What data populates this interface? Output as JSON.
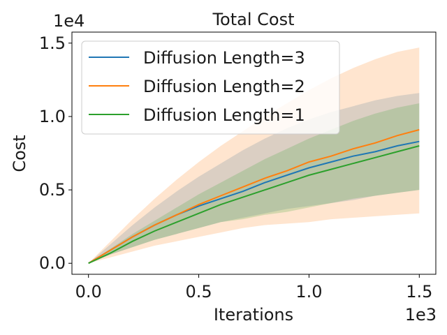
{
  "chart_data": {
    "type": "line",
    "title": "Total Cost",
    "xlabel": "Iterations",
    "ylabel": "Cost",
    "x_offset_label": "1e3",
    "y_offset_label": "1e4",
    "xlim": [
      -0.075,
      1.575
    ],
    "ylim": [
      -0.075,
      1.575
    ],
    "x_ticks": [
      {
        "value": 0.0,
        "label": "0.0"
      },
      {
        "value": 0.5,
        "label": "0.5"
      },
      {
        "value": 1.0,
        "label": "1.0"
      },
      {
        "value": 1.5,
        "label": "1.5"
      }
    ],
    "y_ticks": [
      {
        "value": 0.0,
        "label": "0.0"
      },
      {
        "value": 0.5,
        "label": "0.5"
      },
      {
        "value": 1.0,
        "label": "1.0"
      },
      {
        "value": 1.5,
        "label": "1.5"
      }
    ],
    "x": [
      0,
      0.1,
      0.2,
      0.3,
      0.4,
      0.5,
      0.6,
      0.7,
      0.8,
      0.9,
      1.0,
      1.1,
      1.2,
      1.3,
      1.4,
      1.5
    ],
    "grid": false,
    "legend_position": "top-left",
    "series": [
      {
        "name": "Diffusion Length=3",
        "color": "#1f77b4",
        "values": [
          0,
          0.09,
          0.18,
          0.26,
          0.33,
          0.39,
          0.44,
          0.49,
          0.55,
          0.6,
          0.65,
          0.69,
          0.73,
          0.76,
          0.8,
          0.83
        ],
        "band_upper": [
          0,
          0.13,
          0.26,
          0.38,
          0.49,
          0.59,
          0.68,
          0.77,
          0.85,
          0.92,
          0.98,
          1.03,
          1.07,
          1.11,
          1.14,
          1.16
        ],
        "band_lower": [
          0,
          0.06,
          0.11,
          0.16,
          0.2,
          0.24,
          0.28,
          0.31,
          0.34,
          0.37,
          0.39,
          0.41,
          0.43,
          0.46,
          0.48,
          0.5
        ],
        "band_color": "#1f77b4"
      },
      {
        "name": "Diffusion Length=2",
        "color": "#ff7f0e",
        "values": [
          0,
          0.09,
          0.18,
          0.26,
          0.33,
          0.4,
          0.46,
          0.52,
          0.58,
          0.63,
          0.69,
          0.73,
          0.78,
          0.82,
          0.87,
          0.91
        ],
        "band_upper": [
          0,
          0.15,
          0.3,
          0.44,
          0.57,
          0.69,
          0.8,
          0.9,
          1.0,
          1.09,
          1.18,
          1.26,
          1.33,
          1.39,
          1.44,
          1.47
        ],
        "band_lower": [
          0,
          0.04,
          0.08,
          0.12,
          0.15,
          0.18,
          0.21,
          0.24,
          0.26,
          0.27,
          0.28,
          0.3,
          0.31,
          0.32,
          0.33,
          0.34
        ],
        "band_color": "#ff7f0e"
      },
      {
        "name": "Diffusion Length=1",
        "color": "#2ca02c",
        "values": [
          0,
          0.07,
          0.15,
          0.22,
          0.28,
          0.34,
          0.4,
          0.45,
          0.5,
          0.55,
          0.6,
          0.64,
          0.68,
          0.72,
          0.76,
          0.8
        ],
        "band_upper": [
          0,
          0.1,
          0.2,
          0.29,
          0.38,
          0.47,
          0.55,
          0.63,
          0.71,
          0.78,
          0.85,
          0.91,
          0.97,
          1.02,
          1.06,
          1.09
        ],
        "band_lower": [
          0,
          0.06,
          0.11,
          0.16,
          0.2,
          0.24,
          0.28,
          0.3,
          0.33,
          0.35,
          0.38,
          0.41,
          0.44,
          0.46,
          0.48,
          0.5
        ],
        "band_color": "#2ca02c"
      }
    ]
  }
}
